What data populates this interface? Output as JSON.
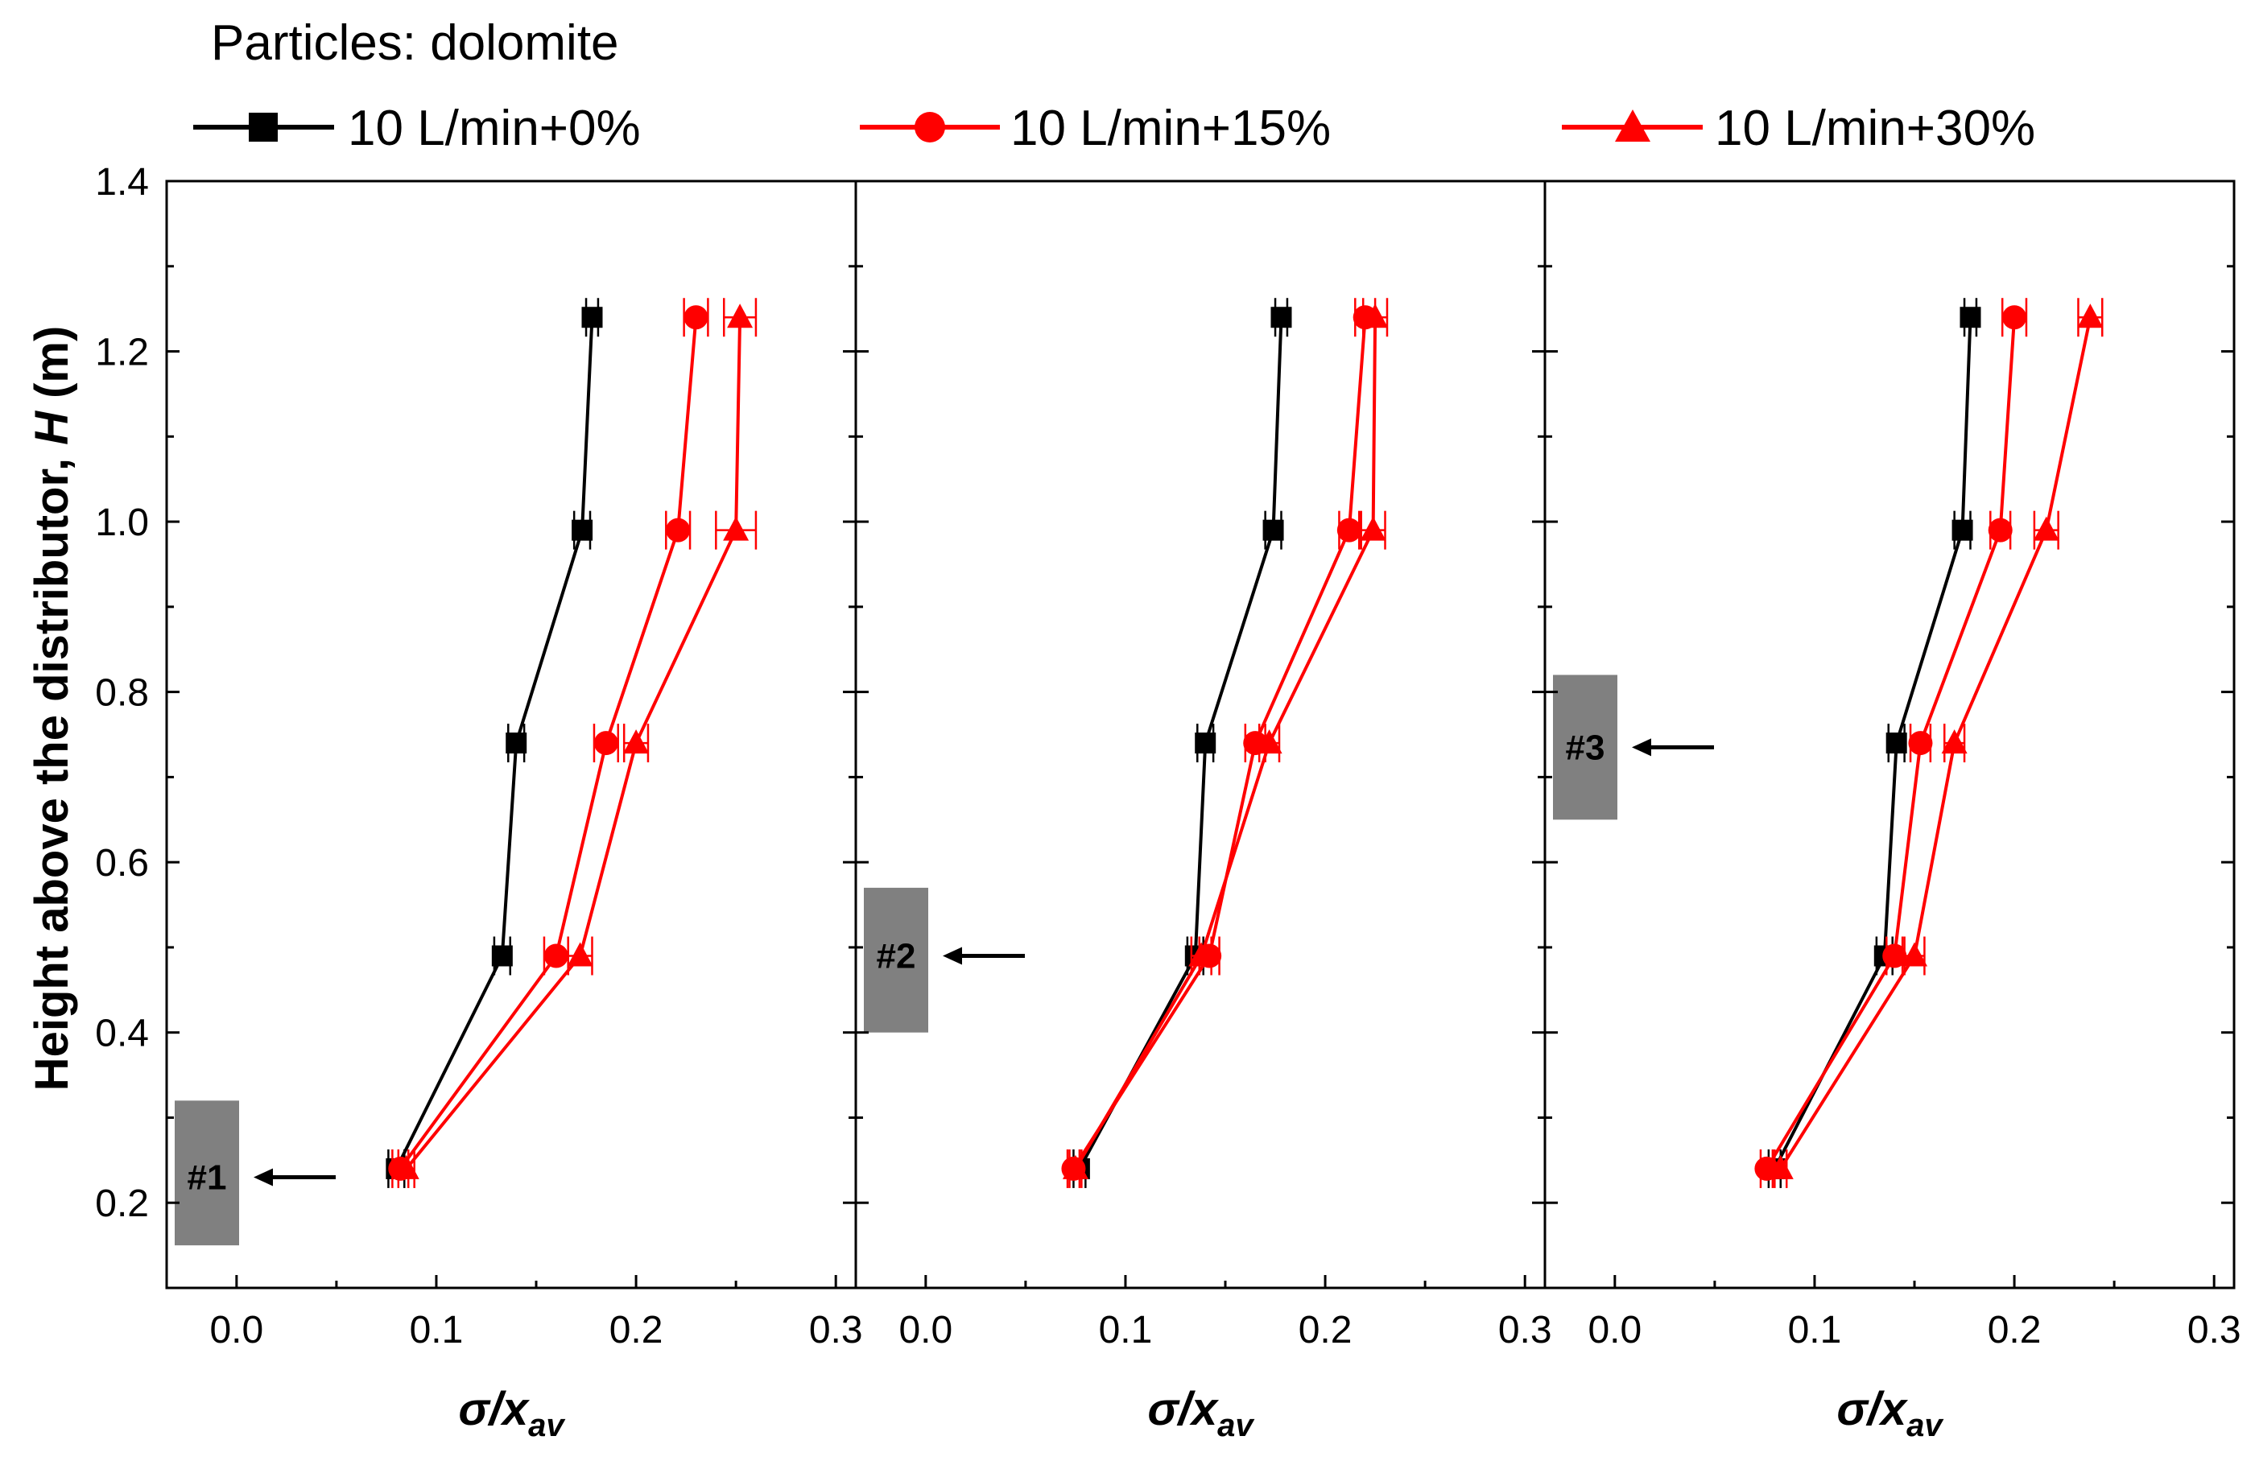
{
  "chart_data": {
    "type": "line",
    "header": "Particles: dolomite",
    "ylabel_prefix": "Height above the distributor, ",
    "ylabel_var": "H",
    "ylabel_suffix": " (m)",
    "xlabel": {
      "main": "σ/x",
      "sub": "av"
    },
    "xlim": [
      -0.035,
      0.31
    ],
    "ylim": [
      0.1,
      1.4
    ],
    "xticks": [
      0.0,
      0.1,
      0.2,
      0.3
    ],
    "xtick_labels": [
      "0.0",
      "0.1",
      "0.2",
      "0.3"
    ],
    "yticks": [
      0.2,
      0.4,
      0.6,
      0.8,
      1.0,
      1.2,
      1.4
    ],
    "ytick_labels": [
      "0.2",
      "0.4",
      "0.6",
      "0.8",
      "1.0",
      "1.2",
      "1.4"
    ],
    "series_meta": [
      {
        "name": "10 L/min+0%",
        "color": "#000000",
        "marker": "square"
      },
      {
        "name": "10 L/min+15%",
        "color": "#ff0000",
        "marker": "circle"
      },
      {
        "name": "10 L/min+30%",
        "color": "#ff0000",
        "marker": "triangle"
      }
    ],
    "panels": [
      {
        "id": "panel-1",
        "box_label": "#1",
        "box_height_range": [
          0.15,
          0.32
        ],
        "arrow_y": 0.23,
        "series": [
          {
            "name": "10 L/min+0%",
            "x": [
              0.08,
              0.133,
              0.14,
              0.173,
              0.178
            ],
            "y": [
              0.24,
              0.49,
              0.74,
              0.99,
              1.24
            ],
            "xerr": [
              0.004,
              0.004,
              0.004,
              0.004,
              0.003
            ]
          },
          {
            "name": "10 L/min+15%",
            "x": [
              0.082,
              0.16,
              0.185,
              0.221,
              0.23
            ],
            "y": [
              0.24,
              0.49,
              0.74,
              0.99,
              1.24
            ],
            "xerr": [
              0.004,
              0.006,
              0.006,
              0.006,
              0.006
            ]
          },
          {
            "name": "10 L/min+30%",
            "x": [
              0.085,
              0.172,
              0.2,
              0.25,
              0.252
            ],
            "y": [
              0.24,
              0.49,
              0.74,
              0.99,
              1.24
            ],
            "xerr": [
              0.004,
              0.006,
              0.006,
              0.01,
              0.008
            ]
          }
        ]
      },
      {
        "id": "panel-2",
        "box_label": "#2",
        "box_height_range": [
          0.4,
          0.57
        ],
        "arrow_y": 0.49,
        "series": [
          {
            "name": "10 L/min+0%",
            "x": [
              0.077,
              0.135,
              0.14,
              0.174,
              0.178
            ],
            "y": [
              0.24,
              0.49,
              0.74,
              0.99,
              1.24
            ],
            "xerr": [
              0.003,
              0.004,
              0.004,
              0.004,
              0.003
            ]
          },
          {
            "name": "10 L/min+15%",
            "x": [
              0.074,
              0.142,
              0.165,
              0.212,
              0.22
            ],
            "y": [
              0.24,
              0.49,
              0.74,
              0.99,
              1.24
            ],
            "xerr": [
              0.003,
              0.005,
              0.005,
              0.005,
              0.005
            ]
          },
          {
            "name": "10 L/min+30%",
            "x": [
              0.075,
              0.138,
              0.172,
              0.224,
              0.225
            ],
            "y": [
              0.24,
              0.49,
              0.74,
              0.99,
              1.24
            ],
            "xerr": [
              0.003,
              0.005,
              0.005,
              0.006,
              0.006
            ]
          }
        ]
      },
      {
        "id": "panel-3",
        "box_label": "#3",
        "box_height_range": [
          0.65,
          0.82
        ],
        "arrow_y": 0.735,
        "series": [
          {
            "name": "10 L/min+0%",
            "x": [
              0.08,
              0.135,
              0.141,
              0.174,
              0.178
            ],
            "y": [
              0.24,
              0.49,
              0.74,
              0.99,
              1.24
            ],
            "xerr": [
              0.003,
              0.004,
              0.004,
              0.004,
              0.003
            ]
          },
          {
            "name": "10 L/min+15%",
            "x": [
              0.076,
              0.14,
              0.153,
              0.193,
              0.2
            ],
            "y": [
              0.24,
              0.49,
              0.74,
              0.99,
              1.24
            ],
            "xerr": [
              0.003,
              0.004,
              0.005,
              0.005,
              0.006
            ]
          },
          {
            "name": "10 L/min+30%",
            "x": [
              0.083,
              0.15,
              0.17,
              0.216,
              0.238
            ],
            "y": [
              0.24,
              0.49,
              0.74,
              0.99,
              1.24
            ],
            "xerr": [
              0.003,
              0.005,
              0.005,
              0.006,
              0.006
            ]
          }
        ]
      }
    ]
  }
}
